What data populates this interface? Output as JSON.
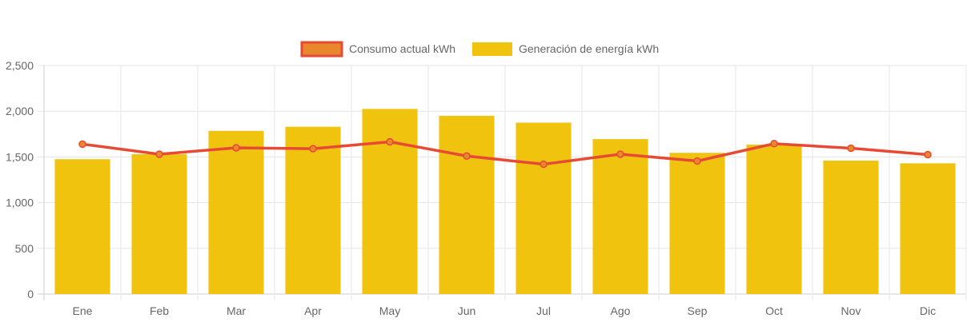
{
  "chart_data": {
    "type": "bar",
    "categories": [
      "Ene",
      "Feb",
      "Mar",
      "Apr",
      "May",
      "Jun",
      "Jul",
      "Ago",
      "Sep",
      "Oct",
      "Nov",
      "Dic"
    ],
    "series": [
      {
        "name": "Consumo actual kWh",
        "type": "line",
        "values": [
          1640,
          1530,
          1600,
          1590,
          1665,
          1510,
          1420,
          1530,
          1455,
          1645,
          1595,
          1525
        ],
        "color": "#e64a35",
        "fill": "#e8872b"
      },
      {
        "name": "Generación de energía kWh",
        "type": "bar",
        "values": [
          1475,
          1530,
          1785,
          1830,
          2025,
          1950,
          1875,
          1695,
          1545,
          1635,
          1460,
          1430
        ],
        "color": "#f0c30f"
      }
    ],
    "yticks": [
      "0",
      "500",
      "1,000",
      "1,500",
      "2,000",
      "2,500"
    ],
    "ylim": [
      0,
      2500
    ],
    "grid": true,
    "legend_position": "top-center",
    "title": "",
    "xlabel": "",
    "ylabel": ""
  }
}
